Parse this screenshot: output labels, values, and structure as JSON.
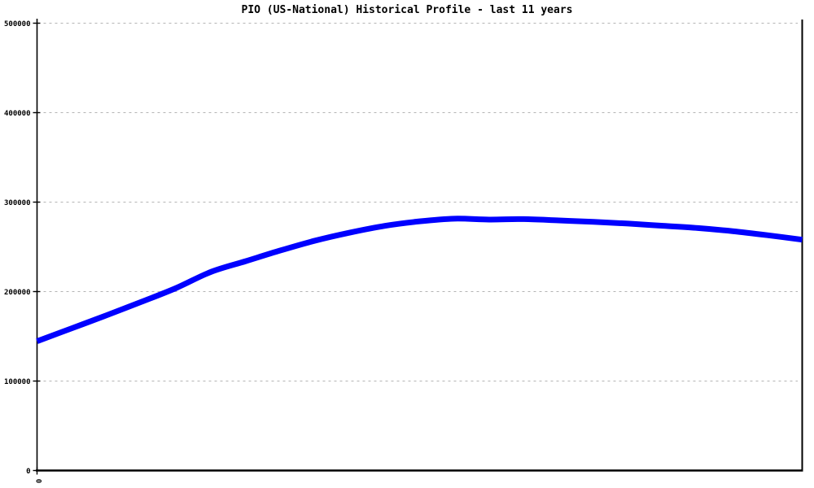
{
  "page": {
    "background": "#ffffff"
  },
  "chart_data": {
    "type": "line",
    "title": "PIO (US-National) Historical Profile - last 11 years",
    "xlabel": "",
    "ylabel": "",
    "x_unit": "years",
    "xlim": [
      0,
      11
    ],
    "ylim": [
      0,
      500000
    ],
    "x": [
      0,
      0.5,
      1,
      1.5,
      2,
      2.5,
      3,
      3.5,
      4,
      4.5,
      5,
      5.5,
      6,
      6.5,
      7,
      7.5,
      8,
      8.5,
      9,
      9.5,
      10,
      10.5,
      11
    ],
    "series": [
      {
        "name": "PIO (US-National)",
        "color": "#0000ff",
        "stroke_width": 7,
        "values": [
          144500,
          159000,
          173500,
          188500,
          204000,
          222000,
          234000,
          246000,
          257000,
          266000,
          273500,
          278500,
          281500,
          280500,
          281000,
          279500,
          278000,
          276000,
          273500,
          271000,
          267500,
          263000,
          258000
        ]
      }
    ],
    "yticks": [
      {
        "value": 0,
        "label": "0"
      },
      {
        "value": 100000,
        "label": "100000"
      },
      {
        "value": 200000,
        "label": "200000"
      },
      {
        "value": 300000,
        "label": "300000"
      },
      {
        "value": 400000,
        "label": "400000"
      },
      {
        "value": 500000,
        "label": "500000"
      }
    ],
    "xticks": [
      {
        "value": 0,
        "label": "0",
        "rotated": true
      }
    ],
    "grid": {
      "horizontal": true,
      "vertical": false,
      "style": "dashed",
      "color": "#b4b4b4"
    },
    "axis_color": "#000000",
    "legend": "none"
  }
}
